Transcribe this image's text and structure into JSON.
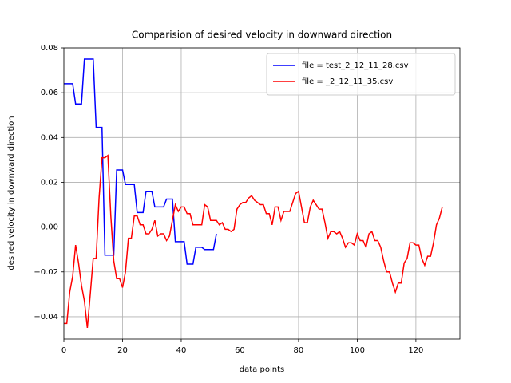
{
  "chart_data": {
    "type": "line",
    "title": "Comparision of desired velocity in downward direction",
    "xlabel": "data points",
    "ylabel": "desired velocity in downward direction",
    "xlim": [
      0,
      135
    ],
    "ylim": [
      -0.05,
      0.08
    ],
    "xticks": [
      0,
      20,
      40,
      60,
      80,
      100,
      120
    ],
    "yticks": [
      {
        "value": -0.04,
        "label": "−0.04"
      },
      {
        "value": -0.02,
        "label": "−0.02"
      },
      {
        "value": 0,
        "label": "0.00"
      },
      0.02,
      0.04,
      0.06,
      0.08
    ],
    "grid": true,
    "legend": "upper right",
    "series": [
      {
        "name": "file = test_2_12_11_28.csv",
        "color": "#0000ff",
        "x": [
          0,
          1,
          2,
          3,
          4,
          5,
          6,
          7,
          8,
          9,
          10,
          11,
          12,
          13,
          14,
          15,
          16,
          17,
          18,
          19,
          20,
          21,
          22,
          23,
          24,
          25,
          26,
          27,
          28,
          29,
          30,
          31,
          32,
          33,
          34,
          35,
          36,
          37,
          38,
          39,
          40,
          41,
          42,
          43,
          44,
          45,
          46,
          47,
          48,
          49,
          50,
          51,
          52
        ],
        "values": [
          0.064,
          0.064,
          0.064,
          0.064,
          0.055,
          0.055,
          0.055,
          0.075,
          0.075,
          0.075,
          0.075,
          0.0445,
          0.0445,
          0.0445,
          -0.0125,
          -0.0125,
          -0.0125,
          -0.0125,
          0.0255,
          0.0255,
          0.0255,
          0.019,
          0.019,
          0.019,
          0.019,
          0.0065,
          0.0065,
          0.0065,
          0.016,
          0.016,
          0.016,
          0.009,
          0.009,
          0.009,
          0.009,
          0.0125,
          0.0125,
          0.0125,
          -0.0065,
          -0.0065,
          -0.0065,
          -0.0065,
          -0.0165,
          -0.0165,
          -0.0165,
          -0.009,
          -0.009,
          -0.009,
          -0.01,
          -0.01,
          -0.01,
          -0.01,
          -0.003
        ]
      },
      {
        "name": "file = _2_12_11_35.csv",
        "color": "#ff0000",
        "x": [
          0,
          1,
          2,
          3,
          4,
          5,
          6,
          7,
          8,
          9,
          10,
          11,
          12,
          13,
          14,
          15,
          16,
          17,
          18,
          19,
          20,
          21,
          22,
          23,
          24,
          25,
          26,
          27,
          28,
          29,
          30,
          31,
          32,
          33,
          34,
          35,
          36,
          37,
          38,
          39,
          40,
          41,
          42,
          43,
          44,
          45,
          46,
          47,
          48,
          49,
          50,
          51,
          52,
          53,
          54,
          55,
          56,
          57,
          58,
          59,
          60,
          61,
          62,
          63,
          64,
          65,
          66,
          67,
          68,
          69,
          70,
          71,
          72,
          73,
          74,
          75,
          76,
          77,
          78,
          79,
          80,
          81,
          82,
          83,
          84,
          85,
          86,
          87,
          88,
          89,
          90,
          91,
          92,
          93,
          94,
          95,
          96,
          97,
          98,
          99,
          100,
          101,
          102,
          103,
          104,
          105,
          106,
          107,
          108,
          109,
          110,
          111,
          112,
          113,
          114,
          115,
          116,
          117,
          118,
          119,
          120,
          121,
          122,
          123,
          124,
          125,
          126,
          127,
          128,
          129
        ],
        "values": [
          -0.043,
          -0.043,
          -0.029,
          -0.022,
          -0.008,
          -0.016,
          -0.026,
          -0.033,
          -0.045,
          -0.03,
          -0.014,
          -0.014,
          0.013,
          0.031,
          0.031,
          0.032,
          0.005,
          -0.015,
          -0.023,
          -0.023,
          -0.027,
          -0.02,
          -0.005,
          -0.005,
          0.005,
          0.005,
          0.001,
          0.001,
          -0.003,
          -0.003,
          -0.001,
          0.003,
          -0.004,
          -0.003,
          -0.003,
          -0.006,
          -0.004,
          0.003,
          0.01,
          0.007,
          0.009,
          0.009,
          0.006,
          0.006,
          0.001,
          0.001,
          0.001,
          0.001,
          0.01,
          0.009,
          0.003,
          0.003,
          0.003,
          0.001,
          0.002,
          -0.001,
          -0.001,
          -0.002,
          -0.001,
          0.008,
          0.01,
          0.011,
          0.011,
          0.013,
          0.014,
          0.012,
          0.011,
          0.01,
          0.01,
          0.006,
          0.006,
          0.001,
          0.009,
          0.009,
          0.003,
          0.007,
          0.007,
          0.007,
          0.011,
          0.015,
          0.016,
          0.009,
          0.002,
          0.002,
          0.009,
          0.012,
          0.01,
          0.008,
          0.008,
          0.002,
          -0.005,
          -0.002,
          -0.002,
          -0.003,
          -0.002,
          -0.005,
          -0.009,
          -0.007,
          -0.007,
          -0.008,
          -0.003,
          -0.006,
          -0.006,
          -0.009,
          -0.003,
          -0.002,
          -0.006,
          -0.006,
          -0.009,
          -0.015,
          -0.02,
          -0.02,
          -0.025,
          -0.029,
          -0.025,
          -0.025,
          -0.016,
          -0.014,
          -0.007,
          -0.007,
          -0.008,
          -0.008,
          -0.014,
          -0.017,
          -0.013,
          -0.013,
          -0.007,
          0.001,
          0.004,
          0.009
        ]
      }
    ]
  }
}
